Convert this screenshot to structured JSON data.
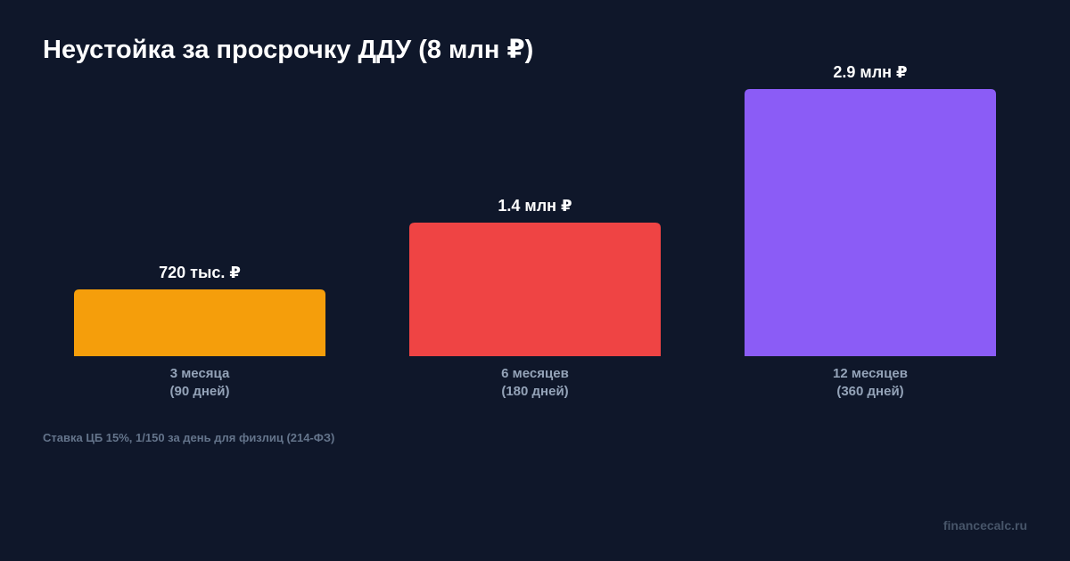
{
  "chart_data": {
    "type": "bar",
    "title": "Неустойка за просрочку ДДУ (8 млн ₽)",
    "categories": [
      [
        "3 месяца",
        "(90 дней)"
      ],
      [
        "6 месяцев",
        "(180 дней)"
      ],
      [
        "12 месяцев",
        "(360 дней)"
      ]
    ],
    "values": [
      720000,
      1440000,
      2880000
    ],
    "value_labels": [
      "720 тыс. ₽",
      "1.4 млн ₽",
      "2.9 млн ₽"
    ],
    "colors": [
      "#f59e0b",
      "#ef4444",
      "#8b5cf6"
    ],
    "ylim": [
      0,
      2880000
    ],
    "grid": false,
    "legend": "none"
  },
  "footnote": "Ставка ЦБ 15%, 1/150 за день для физлиц (214-ФЗ)",
  "watermark": "financecalc.ru",
  "colors": {
    "background": "#0f172a",
    "title": "#ffffff",
    "category_text": "#94a3b8",
    "footnote_text": "#64748b",
    "watermark_text": "#475569"
  }
}
